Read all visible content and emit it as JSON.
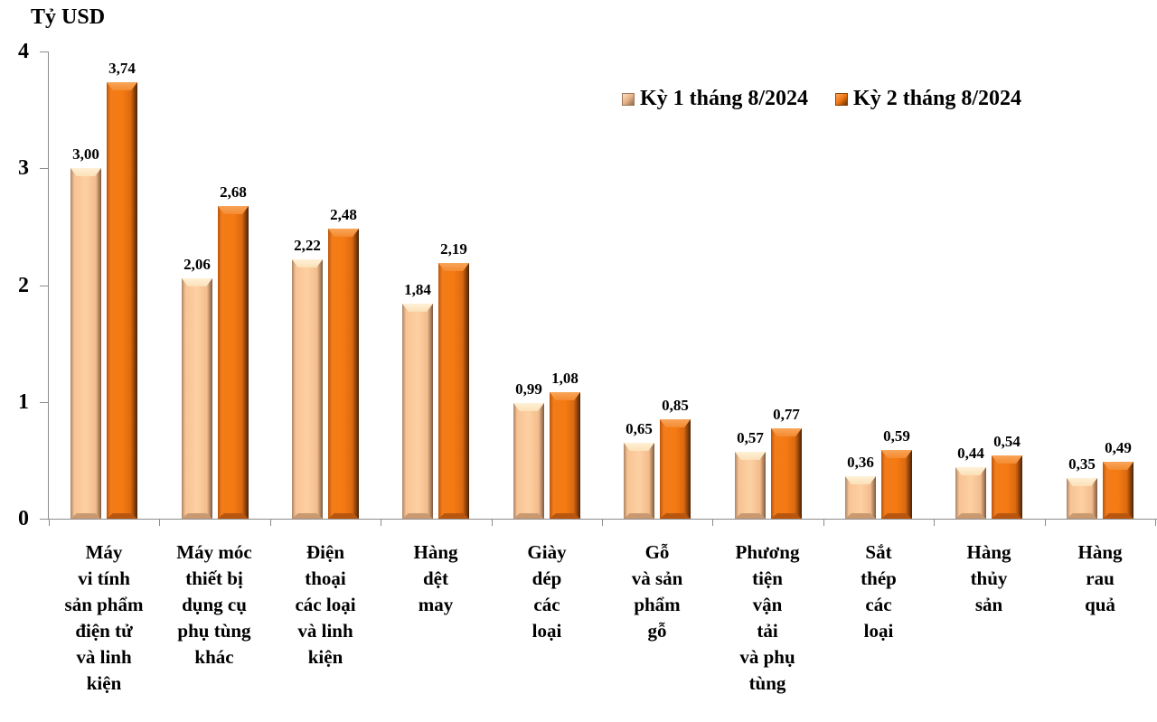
{
  "chart": {
    "unit_label": "Tỷ USD",
    "legend": [
      {
        "label": "Kỳ 1 tháng 8/2024",
        "color": "#fdd0a2"
      },
      {
        "label": "Kỳ 2 tháng 8/2024",
        "color": "#f57a12"
      }
    ],
    "y_ticks": [
      "0",
      "1",
      "2",
      "3",
      "4"
    ],
    "categories": [
      {
        "label": "Máy\nvi tính\nsản phẩm\nđiện tử\nvà linh\nkiện",
        "v1": "3,00",
        "v2": "3,74"
      },
      {
        "label": "Máy móc\nthiết bị\ndụng cụ\nphụ tùng\nkhác",
        "v1": "2,06",
        "v2": "2,68"
      },
      {
        "label": "Điện\nthoại\ncác loại\nvà linh\nkiện",
        "v1": "2,22",
        "v2": "2,48"
      },
      {
        "label": "Hàng\ndệt\nmay",
        "v1": "1,84",
        "v2": "2,19"
      },
      {
        "label": "Giày\ndép\ncác\nloại",
        "v1": "0,99",
        "v2": "1,08"
      },
      {
        "label": "Gỗ\nvà sản\nphẩm\ngỗ",
        "v1": "0,65",
        "v2": "0,85"
      },
      {
        "label": "Phương\ntiện\nvận\ntải\nvà phụ\ntùng",
        "v1": "0,57",
        "v2": "0,77"
      },
      {
        "label": "Sắt\nthép\ncác\nloại",
        "v1": "0,36",
        "v2": "0,59"
      },
      {
        "label": "Hàng\nthủy\nsản",
        "v1": "0,44",
        "v2": "0,54"
      },
      {
        "label": "Hàng\nrau\nquả",
        "v1": "0,35",
        "v2": "0,49"
      }
    ]
  },
  "chart_data": {
    "type": "bar",
    "title": "",
    "xlabel": "",
    "ylabel": "Tỷ USD",
    "ylim": [
      0,
      4
    ],
    "yticks": [
      0,
      1,
      2,
      3,
      4
    ],
    "grid": false,
    "legend_position": "top-right",
    "categories": [
      "Máy vi tính sản phẩm điện tử và linh kiện",
      "Máy móc thiết bị dụng cụ phụ tùng khác",
      "Điện thoại các loại và linh kiện",
      "Hàng dệt may",
      "Giày dép các loại",
      "Gỗ và sản phẩm gỗ",
      "Phương tiện vận tải và phụ tùng",
      "Sắt thép các loại",
      "Hàng thủy sản",
      "Hàng rau quả"
    ],
    "series": [
      {
        "name": "Kỳ 1 tháng 8/2024",
        "color": "#fdd0a2",
        "values": [
          3.0,
          2.06,
          2.22,
          1.84,
          0.99,
          0.65,
          0.57,
          0.36,
          0.44,
          0.35
        ]
      },
      {
        "name": "Kỳ 2 tháng 8/2024",
        "color": "#f57a12",
        "values": [
          3.74,
          2.68,
          2.48,
          2.19,
          1.08,
          0.85,
          0.77,
          0.59,
          0.54,
          0.49
        ]
      }
    ]
  }
}
